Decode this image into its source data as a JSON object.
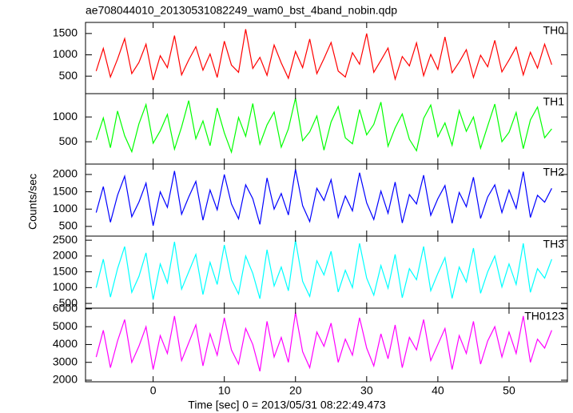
{
  "chart_data": {
    "type": "line",
    "title": "ae708044010_20130531082249_wam0_bst_4band_nobin.qdp",
    "xlabel": "Time [sec] 0 = 2013/05/31 08:22:49.473",
    "ylabel": "Counts/sec",
    "x": [
      -8,
      -7,
      -6,
      -5,
      -4,
      -3,
      -2,
      -1,
      0,
      1,
      2,
      3,
      4,
      5,
      6,
      7,
      8,
      9,
      10,
      11,
      12,
      13,
      14,
      15,
      16,
      17,
      18,
      19,
      20,
      21,
      22,
      23,
      24,
      25,
      26,
      27,
      28,
      29,
      30,
      31,
      32,
      33,
      34,
      35,
      36,
      37,
      38,
      39,
      40,
      41,
      42,
      43,
      44,
      45,
      46,
      47,
      48,
      49,
      50,
      51,
      52,
      53,
      54,
      55,
      56
    ],
    "xlim": [
      -9.5,
      58.2
    ],
    "xticks": [
      0,
      10,
      20,
      30,
      40,
      50
    ],
    "series": [
      {
        "name": "TH0",
        "color": "#ff0000",
        "ylim": [
          90,
          1760
        ],
        "yticks": [
          500,
          1000,
          1500
        ],
        "values": [
          620,
          1150,
          480,
          900,
          1380,
          560,
          820,
          1250,
          410,
          980,
          700,
          1450,
          530,
          880,
          1190,
          640,
          1020,
          470,
          1320,
          760,
          590,
          1600,
          680,
          940,
          520,
          1230,
          810,
          450,
          1080,
          700,
          1370,
          560,
          910,
          1290,
          620,
          480,
          1050,
          780,
          1500,
          590,
          870,
          1160,
          430,
          960,
          740,
          1280,
          510,
          1010,
          660,
          1420,
          580,
          830,
          1120,
          470,
          990,
          720,
          1340,
          600,
          880,
          1180,
          530,
          1060,
          690,
          1250,
          770
        ]
      },
      {
        "name": "TH1",
        "color": "#00ff00",
        "ylim": [
          50,
          1470
        ],
        "yticks": [
          500,
          1000
        ],
        "values": [
          540,
          980,
          380,
          1120,
          620,
          300,
          860,
          1250,
          470,
          720,
          1050,
          350,
          800,
          1330,
          560,
          920,
          420,
          1180,
          680,
          290,
          990,
          610,
          1270,
          450,
          840,
          1100,
          390,
          760,
          1380,
          520,
          700,
          1020,
          330,
          900,
          1210,
          580,
          460,
          1150,
          640,
          850,
          1300,
          410,
          780,
          1060,
          550,
          320,
          970,
          1240,
          600,
          880,
          430,
          1130,
          710,
          1000,
          370,
          820,
          1260,
          500,
          690,
          1090,
          360,
          940,
          1200,
          580,
          760
        ]
      },
      {
        "name": "TH2",
        "color": "#0000ff",
        "ylim": [
          220,
          2300
        ],
        "yticks": [
          500,
          1000,
          1500,
          2000
        ],
        "values": [
          900,
          1650,
          620,
          1400,
          1950,
          780,
          1200,
          1750,
          520,
          1500,
          1050,
          2100,
          850,
          1350,
          1800,
          680,
          1550,
          980,
          2000,
          1150,
          720,
          1700,
          1300,
          560,
          1900,
          1000,
          1450,
          830,
          2150,
          1100,
          640,
          1600,
          1250,
          1850,
          760,
          1380,
          950,
          2050,
          1180,
          700,
          1520,
          880,
          1780,
          600,
          1420,
          1150,
          1980,
          820,
          1300,
          1680,
          590,
          1480,
          1070,
          1920,
          730,
          1350,
          1700,
          900,
          1550,
          1020,
          2080,
          760,
          1400,
          1200,
          1600
        ]
      },
      {
        "name": "TH3",
        "color": "#00ffff",
        "ylim": [
          350,
          2630
        ],
        "yticks": [
          500,
          1000,
          1500,
          2000,
          2500
        ],
        "values": [
          1000,
          1900,
          700,
          1600,
          2300,
          850,
          1350,
          2100,
          620,
          1750,
          1150,
          2450,
          950,
          1500,
          2050,
          780,
          1800,
          1100,
          2350,
          1250,
          800,
          2000,
          1450,
          650,
          2200,
          1050,
          1650,
          900,
          2500,
          1200,
          720,
          1850,
          1400,
          2150,
          860,
          1550,
          1000,
          2400,
          1300,
          760,
          1700,
          980,
          2050,
          680,
          1600,
          1250,
          2300,
          900,
          1450,
          1950,
          660,
          1650,
          1180,
          2250,
          820,
          1500,
          2000,
          1020,
          1750,
          1100,
          2400,
          850,
          1600,
          1300,
          1900
        ]
      },
      {
        "name": "TH0123",
        "color": "#ff00ff",
        "ylim": [
          1910,
          6040
        ],
        "yticks": [
          2000,
          3000,
          4000,
          5000,
          6000
        ],
        "values": [
          3300,
          4800,
          2700,
          4200,
          5400,
          3000,
          3900,
          5000,
          2600,
          4500,
          3500,
          5600,
          3100,
          4100,
          5100,
          2800,
          4600,
          3400,
          5500,
          3700,
          2900,
          4900,
          4000,
          2500,
          5300,
          3300,
          4400,
          3000,
          5800,
          3600,
          2700,
          4700,
          3900,
          5200,
          3000,
          4300,
          3400,
          5500,
          3800,
          2800,
          4600,
          3200,
          5100,
          2700,
          4400,
          3700,
          5400,
          3100,
          4000,
          4900,
          2600,
          4500,
          3500,
          5300,
          2900,
          4200,
          5000,
          3300,
          4700,
          3500,
          5600,
          3000,
          4300,
          3800,
          4800
        ]
      }
    ]
  }
}
